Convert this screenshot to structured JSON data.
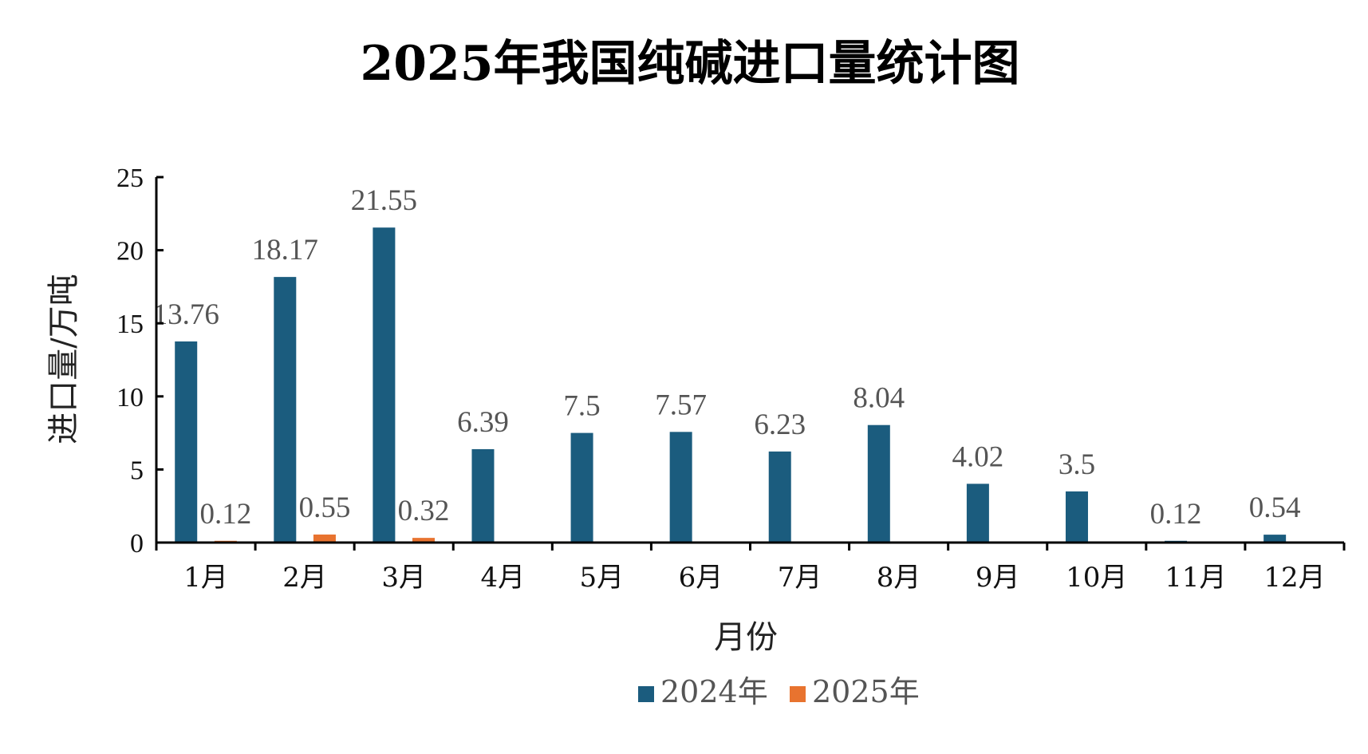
{
  "chart_data": {
    "type": "bar",
    "title": "2025年我国纯碱进口量统计图",
    "xlabel": "月份",
    "ylabel": "进口量/万吨",
    "categories": [
      "1月",
      "2月",
      "3月",
      "4月",
      "5月",
      "6月",
      "7月",
      "8月",
      "9月",
      "10月",
      "11月",
      "12月"
    ],
    "series": [
      {
        "name": "2024年",
        "color": "#1b5c7e",
        "values": [
          13.76,
          18.17,
          21.55,
          6.39,
          7.5,
          7.57,
          6.23,
          8.04,
          4.02,
          3.5,
          0.12,
          0.54
        ],
        "labels": [
          "13.76",
          "18.17",
          "21.55",
          "6.39",
          "7.5",
          "7.57",
          "6.23",
          "8.04",
          "4.02",
          "3.5",
          "0.12",
          "0.54"
        ]
      },
      {
        "name": "2025年",
        "color": "#e8732f",
        "values": [
          0.12,
          0.55,
          0.32,
          null,
          null,
          null,
          null,
          null,
          null,
          null,
          null,
          null
        ],
        "labels": [
          "0.12",
          "0.55",
          "0.32",
          "",
          "",
          "",
          "",
          "",
          "",
          "",
          "",
          ""
        ]
      }
    ],
    "ylim": [
      0,
      25
    ],
    "yticks": [
      "0",
      "5",
      "10",
      "15",
      "20",
      "25"
    ],
    "grid": false,
    "legend_position": "bottom-center"
  }
}
